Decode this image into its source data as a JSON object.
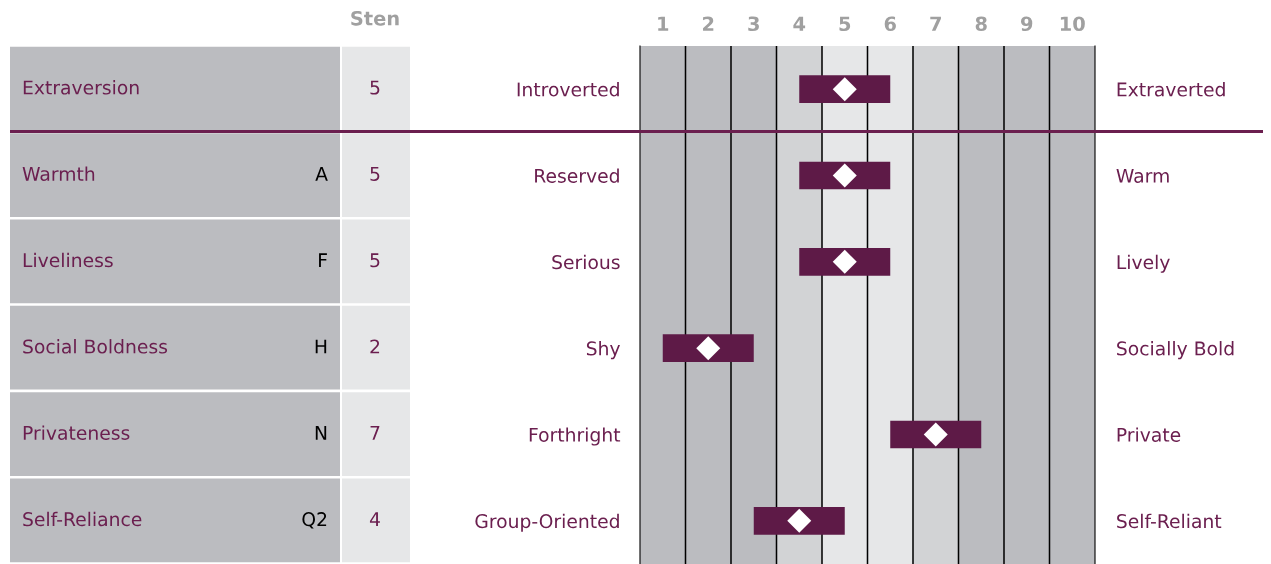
{
  "chart_data": {
    "type": "bar",
    "orientation": "horizontal",
    "categories": [
      "Introverted",
      "Reserved",
      "Serious",
      "Shy",
      "Forthright",
      "Group-Oriented"
    ],
    "y2_categories": [
      "Extraverted",
      "Warm",
      "Lively",
      "Socially Bold",
      "Private",
      "Self-Reliant"
    ],
    "series": [
      {
        "color": "#5e1a47",
        "base": [
          4,
          4,
          4,
          1,
          6,
          3
        ],
        "values": [
          2,
          2,
          2,
          2,
          2,
          2
        ]
      },
      {
        "type": "scatter",
        "color": "#ffffff",
        "marker": "diamond",
        "values": [
          5,
          5,
          5,
          2,
          7,
          4
        ],
        "value_labels": [
          "5",
          "5",
          "5",
          "2",
          "7",
          "4"
        ]
      }
    ],
    "xlim": [
      0.5,
      10.5
    ],
    "xticks": [
      1,
      2,
      3,
      4,
      5,
      6,
      7,
      8,
      9,
      10
    ],
    "bands": [
      {
        "axis": "x",
        "from": 0.5,
        "to": 3.5,
        "color": "#bbbcc0"
      },
      {
        "axis": "x",
        "from": 3.5,
        "to": 4.5,
        "color": "#d2d3d5"
      },
      {
        "axis": "x",
        "from": 4.5,
        "to": 6.5,
        "color": "#e6e7e8"
      },
      {
        "axis": "x",
        "from": 6.5,
        "to": 7.5,
        "color": "#d2d3d5"
      },
      {
        "axis": "x",
        "from": 7.5,
        "to": 10.5,
        "color": "#bbbcc0"
      }
    ],
    "ref_lines": [
      {
        "axis": "x",
        "value": 1.5,
        "color": "#000000"
      },
      {
        "axis": "x",
        "value": 2.5,
        "color": "#000000"
      },
      {
        "axis": "x",
        "value": 3.5,
        "color": "#000000"
      },
      {
        "axis": "x",
        "value": 4.5,
        "color": "#000000"
      },
      {
        "axis": "x",
        "value": 5.5,
        "color": "#000000"
      },
      {
        "axis": "x",
        "value": 6.5,
        "color": "#000000"
      },
      {
        "axis": "x",
        "value": 7.5,
        "color": "#000000"
      },
      {
        "axis": "x",
        "value": 8.5,
        "color": "#000000"
      },
      {
        "axis": "x",
        "value": 9.5,
        "color": "#000000"
      }
    ],
    "annotations": [
      "Sten",
      "Extraversion",
      "Warmth",
      "A",
      "Liveliness",
      "F",
      "Social Boldness",
      "H",
      "Privateness",
      "N",
      "Self-Reliance",
      "Q2"
    ],
    "grid": false
  }
}
